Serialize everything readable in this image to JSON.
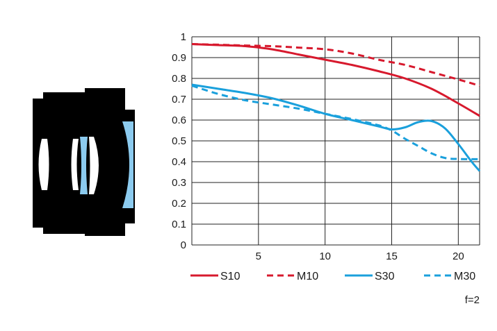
{
  "chart_data": {
    "type": "line",
    "x_ticks": [
      "5",
      "10",
      "15",
      "20"
    ],
    "y_ticks": [
      "0",
      "0.1",
      "0.2",
      "0.3",
      "0.4",
      "0.5",
      "0.6",
      "0.7",
      "0.8",
      "0.9",
      "1"
    ],
    "xlim": [
      0,
      21.6
    ],
    "ylim": [
      0,
      1
    ],
    "grid": true,
    "legend_position": "bottom",
    "annotation": "f=2",
    "series": [
      {
        "name": "S10",
        "color": "#d7192d",
        "dash": false,
        "points": [
          [
            0,
            0.965
          ],
          [
            2,
            0.96
          ],
          [
            4,
            0.955
          ],
          [
            6,
            0.94
          ],
          [
            8,
            0.915
          ],
          [
            10,
            0.89
          ],
          [
            12,
            0.865
          ],
          [
            14,
            0.835
          ],
          [
            16,
            0.8
          ],
          [
            18,
            0.75
          ],
          [
            20,
            0.68
          ],
          [
            21.6,
            0.62
          ]
        ]
      },
      {
        "name": "M10",
        "color": "#d7192d",
        "dash": true,
        "points": [
          [
            0,
            0.965
          ],
          [
            2,
            0.962
          ],
          [
            4,
            0.958
          ],
          [
            6,
            0.955
          ],
          [
            8,
            0.948
          ],
          [
            10,
            0.94
          ],
          [
            12,
            0.92
          ],
          [
            14,
            0.89
          ],
          [
            16,
            0.865
          ],
          [
            18,
            0.83
          ],
          [
            20,
            0.795
          ],
          [
            21.6,
            0.765
          ]
        ]
      },
      {
        "name": "S30",
        "color": "#1aa0dc",
        "dash": false,
        "points": [
          [
            0,
            0.77
          ],
          [
            2,
            0.75
          ],
          [
            4,
            0.73
          ],
          [
            6,
            0.705
          ],
          [
            8,
            0.67
          ],
          [
            10,
            0.63
          ],
          [
            12,
            0.6
          ],
          [
            14,
            0.57
          ],
          [
            15,
            0.555
          ],
          [
            16,
            0.565
          ],
          [
            17,
            0.59
          ],
          [
            18,
            0.595
          ],
          [
            19,
            0.56
          ],
          [
            20,
            0.485
          ],
          [
            21,
            0.4
          ],
          [
            21.6,
            0.355
          ]
        ]
      },
      {
        "name": "M30",
        "color": "#1aa0dc",
        "dash": true,
        "points": [
          [
            0,
            0.765
          ],
          [
            2,
            0.725
          ],
          [
            4,
            0.695
          ],
          [
            6,
            0.675
          ],
          [
            8,
            0.655
          ],
          [
            10,
            0.63
          ],
          [
            12,
            0.605
          ],
          [
            14,
            0.575
          ],
          [
            15,
            0.55
          ],
          [
            16,
            0.51
          ],
          [
            17,
            0.475
          ],
          [
            18,
            0.44
          ],
          [
            19,
            0.418
          ],
          [
            20,
            0.413
          ],
          [
            21.6,
            0.412
          ]
        ]
      }
    ]
  },
  "lens_diagram": {
    "body_color": "#000000",
    "element_color": "#8ccbef",
    "clear_element_color": "#ffffff"
  }
}
